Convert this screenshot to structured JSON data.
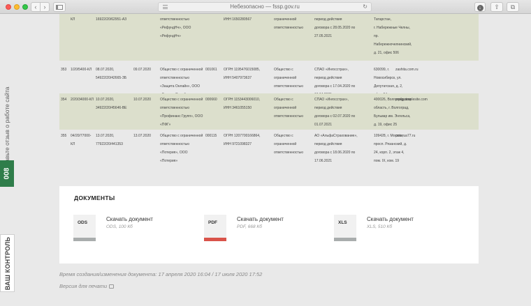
{
  "browser": {
    "address": "Небезопасно — fssp.gov.ru",
    "back_glyph": "‹",
    "forward_glyph": "›",
    "refresh_glyph": "↻",
    "download_glyph": "↓",
    "share_glyph": "⇧",
    "tabs_glyph": "⧉"
  },
  "side_widgets": {
    "feedback": "Оставьте отзыв о работе сайта",
    "badge": "008",
    "control": "ВАШ КОНТРОЛЬ"
  },
  "table": {
    "rows": [
      {
        "num": "",
        "reg": [
          "КЛ"
        ],
        "dates": [
          "16922/20/62951-АЗ"
        ],
        "date2": [],
        "name": [
          "ответственностью",
          "«РефундНч», ООО",
          "«РефундНч»"
        ],
        "reestr": [],
        "ogrn": [
          "ИНН 1650280567"
        ],
        "form": [
          "ограниченной",
          "ответственностью"
        ],
        "insurer": [
          "период действия",
          "договора с 28.05.2020 по",
          "27.05.2021"
        ],
        "address": [
          "Татарстан,",
          "г. Набережные Челны,",
          "пр.",
          "Набережночелнинский,",
          "д. 21, офис 506"
        ],
        "site": []
      },
      {
        "num": "353",
        "reg": [
          "1/20/5400-КЛ"
        ],
        "dates": [
          "08.07.2020,",
          "54922/20/42665-ЗБ"
        ],
        "date2": [
          "09.07.2020"
        ],
        "name": [
          "Общество с ограниченной",
          "ответственностью",
          "«Защита Онлайн», ООО",
          "«Защита Онлайн»"
        ],
        "reestr": [
          "001061"
        ],
        "ogrn": [
          "ОГРН 1195476015085,",
          "ИНН 5407973637"
        ],
        "form": [
          "Общество с",
          "ограниченной",
          "ответственностью"
        ],
        "insurer": [
          "СПАО «Ингосстрах»,",
          "период действия",
          "договора с 17.04.2020 по",
          "16.04.2021"
        ],
        "address": [
          "630099, г.",
          "Новосибирск, ул.",
          "Депутатская, д. 2,",
          "офис 54"
        ],
        "site": [
          "zashita.com.ru"
        ]
      },
      {
        "num": "354",
        "reg": [
          "2/20/34000-КЛ"
        ],
        "dates": [
          "10.07.2020,",
          "34922/20/45646-ВЕ"
        ],
        "date2": [
          "10.07.2020"
        ],
        "name": [
          "Общество с ограниченной",
          "ответственностью",
          "«Профинанс Групп», ООО",
          "«ПФГ»"
        ],
        "reestr": [
          "000660"
        ],
        "ogrn": [
          "ОГРН 1153443006010,",
          "ИНН 3461055150"
        ],
        "form": [
          "Общество с",
          "ограниченной",
          "ответственностью"
        ],
        "insurer": [
          "СПАО «Ингосстрах»,",
          "период действия",
          "договора с 02.07.2020 по",
          "01.07.2021"
        ],
        "address": [
          "400026, Волгоградская",
          "область, г. Волгоград,",
          "Бульвар им. Энгельса,",
          "д. 19, офис 25"
        ],
        "site": [
          "profg.simplesite.com"
        ]
      },
      {
        "num": "355",
        "reg": [
          "04/20/77000-",
          "КЛ"
        ],
        "dates": [
          "13.07.2020,",
          "77922/20/441353"
        ],
        "date2": [
          "13.07.2020"
        ],
        "name": [
          "Общество с ограниченной",
          "ответственностью",
          "«Потерия», ООО",
          "«Потерия»"
        ],
        "reestr": [
          "000115"
        ],
        "ogrn": [
          "ОГРН 1207700166864,",
          "ИНН 9721098327"
        ],
        "form": [
          "Общество с",
          "ограниченной",
          "ответственностью"
        ],
        "insurer": [
          "АО «АльфаСтрахование»,",
          "период действия",
          "договора с 18.06.2020 по",
          "17.06.2021"
        ],
        "address": [
          "109428, г. Москва,",
          "просп. Рязанский, д.",
          "24, корп. 2, этаж 4,",
          "пом. IX, ком. 19"
        ],
        "site": [
          "poterua77.ru"
        ]
      }
    ]
  },
  "documents": {
    "title": "ДОКУМЕНТЫ",
    "items": [
      {
        "ext": "ODS",
        "link": "Скачать документ",
        "meta": "ODS, 100 Кб",
        "bar_color": "#a9adad"
      },
      {
        "ext": "PDF",
        "link": "Скачать документ",
        "meta": "PDF, 668 Кб",
        "bar_color": "#d9534a"
      },
      {
        "ext": "XLS",
        "link": "Скачать документ",
        "meta": "XLS, 510 Кб",
        "bar_color": "#a9adad"
      }
    ]
  },
  "footer": {
    "timestamp": "Время создания/изменения документа: 17 апреля 2020 16:04 / 17 июля 2020 17:52",
    "print": "Версия для печати"
  }
}
